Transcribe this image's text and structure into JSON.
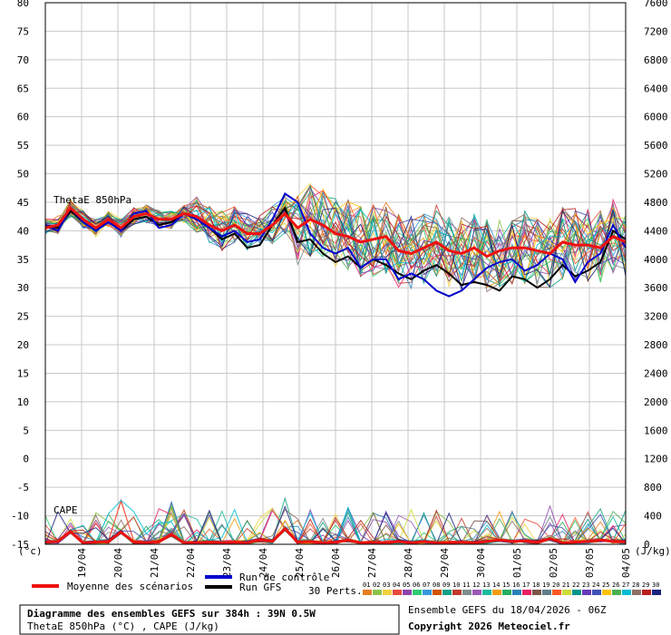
{
  "chart_data": {
    "type": "line",
    "title": "Diagramme des ensembles GEFS sur 384h : 39N 0.5W",
    "subtitle": "ThetaE 850hPa (°C) , CAPE (J/kg)",
    "left_unit": "(°c)",
    "right_unit": "(J/kg)",
    "ylim_left": [
      -15,
      80
    ],
    "yticks_left": [
      80,
      75,
      70,
      65,
      60,
      55,
      50,
      45,
      40,
      35,
      30,
      25,
      20,
      15,
      10,
      5,
      0,
      -5,
      -10,
      -15
    ],
    "ylim_right": [
      0,
      7600
    ],
    "yticks_right": [
      7600,
      7200,
      6800,
      6400,
      6000,
      5600,
      5200,
      4800,
      4400,
      4000,
      3600,
      3200,
      2800,
      2400,
      2000,
      1600,
      1200,
      800,
      400,
      0
    ],
    "x_tick_labels": [
      "19/04",
      "20/04",
      "21/04",
      "22/04",
      "23/04",
      "24/04",
      "25/04",
      "26/04",
      "27/04",
      "28/04",
      "29/04",
      "30/04",
      "01/05",
      "02/05",
      "03/05",
      "04/05"
    ],
    "panel_labels": {
      "thetae": "ThetaE 850hPa",
      "cape": "CAPE"
    },
    "mean_thetae": [
      40.5,
      41,
      44,
      42,
      40.5,
      42,
      40.5,
      42.5,
      43,
      42,
      42,
      43,
      42.5,
      41,
      40,
      41,
      39.5,
      39.5,
      41,
      43,
      40.5,
      42,
      41,
      39.5,
      39,
      38,
      38.5,
      39,
      36.5,
      36,
      37,
      38,
      36.5,
      36,
      37,
      35.5,
      36.5,
      37,
      37,
      36.5,
      36,
      38,
      37.5,
      37.5,
      37,
      39,
      38
    ],
    "gfs_thetae": [
      41,
      40.5,
      43.5,
      41.5,
      40,
      42,
      40,
      42,
      42.5,
      41,
      41.5,
      43,
      42,
      40.5,
      38.5,
      39.5,
      37,
      37.5,
      41,
      44,
      38,
      38.5,
      36,
      34.5,
      35.5,
      33.5,
      35,
      34,
      32.5,
      31.5,
      33,
      34,
      32.5,
      30.5,
      31,
      30.5,
      29.5,
      32,
      31.5,
      30,
      31.5,
      34,
      32,
      33,
      34.5,
      40,
      38.5
    ],
    "control_thetae": [
      41,
      40,
      44,
      41.5,
      40,
      41.5,
      40,
      43,
      43.5,
      40.5,
      41,
      43,
      42,
      40.5,
      39,
      40,
      38,
      38.5,
      42,
      46.5,
      45,
      39.5,
      37,
      36,
      37,
      33.5,
      35,
      35,
      31.5,
      32.5,
      31.5,
      29.5,
      28.5,
      29.5,
      31.5,
      33.5,
      34.5,
      35,
      33,
      34,
      36,
      35,
      31,
      34.5,
      36,
      41,
      37
    ],
    "mean_cape": [
      30,
      40,
      180,
      20,
      30,
      40,
      170,
      30,
      20,
      40,
      140,
      20,
      20,
      30,
      20,
      30,
      20,
      60,
      40,
      220,
      30,
      40,
      20,
      30,
      60,
      20,
      30,
      20,
      40,
      20,
      40,
      20,
      20,
      30,
      20,
      40,
      60,
      40,
      50,
      30,
      80,
      20,
      30,
      40,
      60,
      40,
      30
    ],
    "legend": {
      "mean": "Moyenne des scénarios",
      "control": "Run de contrôle",
      "gfs": "Run GFS",
      "perts": "30 Perts.",
      "member_numbers": [
        "01",
        "02",
        "03",
        "04",
        "05",
        "06",
        "07",
        "08",
        "09",
        "10",
        "11",
        "12",
        "13",
        "14",
        "15",
        "16",
        "17",
        "18",
        "19",
        "20",
        "21",
        "22",
        "23",
        "24",
        "25",
        "26",
        "27",
        "28",
        "29",
        "30"
      ],
      "member_colors": [
        "#e67e22",
        "#8bc34a",
        "#f4d03f",
        "#e74c3c",
        "#8e44ad",
        "#2ecc71",
        "#3498db",
        "#d35400",
        "#16a085",
        "#c0392b",
        "#7f8c8d",
        "#9b59b6",
        "#1abc9c",
        "#f39c12",
        "#27ae60",
        "#2980b9",
        "#e91e63",
        "#795548",
        "#607d8b",
        "#ff5722",
        "#cddc39",
        "#009688",
        "#673ab7",
        "#3f51b5",
        "#ffc107",
        "#4caf50",
        "#00bcd4",
        "#8d6e63",
        "#b71c1c",
        "#1a237e"
      ]
    },
    "series_colors": {
      "mean": "#ee1111",
      "control": "#0000cc",
      "gfs": "#000000"
    },
    "info": {
      "box_line1": "Diagramme des ensembles GEFS sur 384h : 39N 0.5W",
      "box_line2": "ThetaE 850hPa (°C) , CAPE (J/kg)",
      "run": "Ensemble GEFS du 18/04/2026 - 06Z",
      "copyright": "Copyright 2026 Meteociel.fr"
    }
  }
}
